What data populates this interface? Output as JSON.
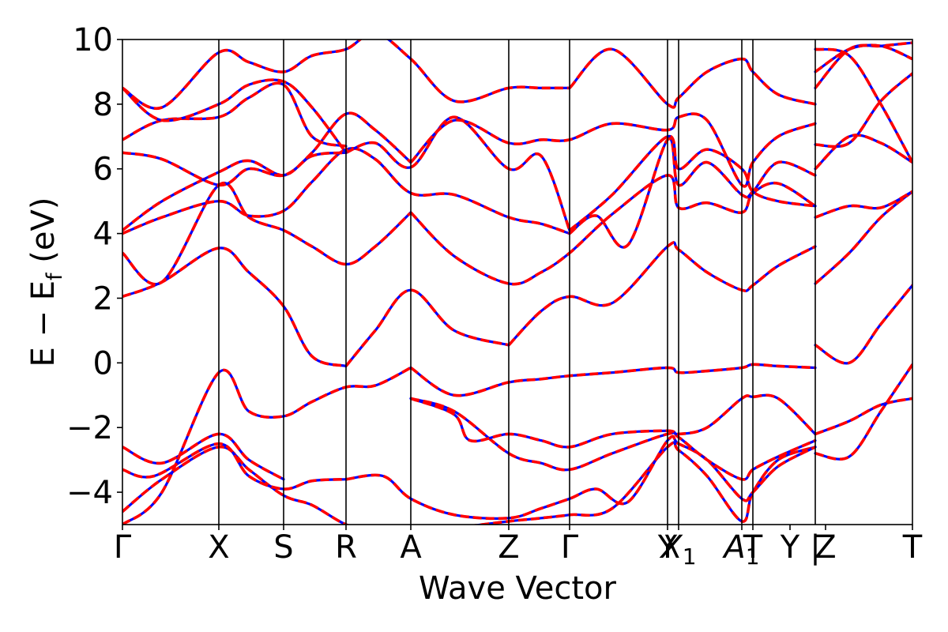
{
  "chart_data": {
    "type": "line",
    "title": "",
    "xlabel": "Wave Vector",
    "ylabel": "E − E",
    "ylabel_subscript": "f",
    "ylabel_unit": " (eV)",
    "ylim": [
      -5,
      10
    ],
    "yticks": [
      -4,
      -2,
      0,
      2,
      4,
      6,
      8,
      10
    ],
    "ytick_labels": [
      "−4",
      "−2",
      "0",
      "2",
      "4",
      "6",
      "8",
      "10"
    ],
    "xlim": [
      0,
      1
    ],
    "kpoints": [
      {
        "x": 0.0,
        "label": "Γ",
        "sub": ""
      },
      {
        "x": 0.122,
        "label": "X",
        "sub": ""
      },
      {
        "x": 0.204,
        "label": "S",
        "sub": ""
      },
      {
        "x": 0.283,
        "label": "R",
        "sub": ""
      },
      {
        "x": 0.365,
        "label": "A",
        "sub": ""
      },
      {
        "x": 0.489,
        "label": "Z",
        "sub": ""
      },
      {
        "x": 0.566,
        "label": "Γ",
        "sub": ""
      },
      {
        "x": 0.69,
        "label": "Y",
        "sub": ""
      },
      {
        "x": 0.704,
        "label": "X",
        "sub": "1"
      },
      {
        "x": 0.784,
        "label": "A",
        "sub": "1"
      },
      {
        "x": 0.798,
        "label": "T",
        "sub": ""
      },
      {
        "x": 0.845,
        "label": "Y",
        "sub": ""
      },
      {
        "x": 0.877,
        "label": "|",
        "sub": ""
      },
      {
        "x": 0.89,
        "label": "Z",
        "sub": ""
      },
      {
        "x": 1.0,
        "label": "T",
        "sub": ""
      }
    ],
    "vlines": [
      0.122,
      0.204,
      0.283,
      0.365,
      0.489,
      0.566,
      0.69,
      0.704,
      0.784,
      0.798,
      0.877
    ],
    "series": [
      {
        "style": "blue-solid-red-dashed",
        "bands": [
          {
            "x": [
              0,
              0.05,
              0.122,
              0.16,
              0.204,
              0.24,
              0.283,
              0.32,
              0.365,
              0.42,
              0.489,
              0.53,
              0.566,
              0.62,
              0.69,
              0.704,
              0.74,
              0.784,
              0.798,
              0.83,
              0.877
            ],
            "y": [
              -4.6,
              -3.6,
              -2.6,
              -3.3,
              -4.1,
              -4.4,
              -5.0,
              -5.2,
              -5.2,
              -5.1,
              -4.9,
              -4.8,
              -4.7,
              -4.5,
              -2.6,
              -2.7,
              -3.5,
              -4.9,
              -4.0,
              -3.0,
              -2.6
            ]
          },
          {
            "x": [
              0,
              0.04,
              0.122,
              0.16,
              0.204,
              0.24,
              0.283
            ],
            "y": [
              -3.3,
              -3.5,
              -2.5,
              -3.5,
              -3.9,
              -3.65,
              -3.6
            ]
          },
          {
            "x": [
              0,
              0.05,
              0.122,
              0.16,
              0.204
            ],
            "y": [
              -2.6,
              -3.1,
              -2.2,
              -3.0,
              -3.6
            ]
          },
          {
            "x": [
              0.283,
              0.33,
              0.365,
              0.42,
              0.489,
              0.53,
              0.566,
              0.6,
              0.64,
              0.69,
              0.704,
              0.74,
              0.784,
              0.798,
              0.83,
              0.877
            ],
            "y": [
              -3.6,
              -3.5,
              -4.2,
              -4.7,
              -4.8,
              -4.5,
              -4.2,
              -3.9,
              -4.3,
              -2.4,
              -2.5,
              -3.0,
              -4.2,
              -4.0,
              -3.2,
              -2.6
            ]
          },
          {
            "x": [
              0.365,
              0.42,
              0.489,
              0.53,
              0.566,
              0.62,
              0.69,
              0.704,
              0.74,
              0.784,
              0.798,
              0.83,
              0.877
            ],
            "y": [
              -1.1,
              -1.5,
              -2.8,
              -3.1,
              -3.3,
              -2.8,
              -2.2,
              -2.3,
              -3.0,
              -3.6,
              -3.3,
              -2.9,
              -2.4
            ]
          },
          {
            "x": [
              0.365,
              0.42,
              0.44,
              0.489,
              0.53,
              0.566,
              0.62,
              0.69,
              0.704,
              0.74,
              0.784,
              0.798,
              0.83,
              0.877
            ],
            "y": [
              -1.1,
              -1.6,
              -2.4,
              -2.2,
              -2.4,
              -2.6,
              -2.2,
              -2.1,
              -2.2,
              -2.0,
              -1.1,
              -1.05,
              -1.1,
              -2.2
            ]
          },
          {
            "x": [
              0,
              0.05,
              0.122,
              0.16,
              0.204,
              0.24,
              0.283,
              0.32,
              0.365
            ],
            "y": [
              -5.0,
              -4.0,
              -0.3,
              -1.5,
              -1.65,
              -1.2,
              -0.75,
              -0.7,
              -0.15
            ]
          },
          {
            "x": [
              0.365,
              0.42,
              0.489,
              0.53,
              0.566,
              0.62,
              0.69,
              0.704,
              0.74,
              0.784,
              0.798,
              0.83,
              0.877
            ],
            "y": [
              -0.15,
              -1.0,
              -0.6,
              -0.5,
              -0.4,
              -0.3,
              -0.15,
              -0.3,
              -0.25,
              -0.15,
              -0.05,
              -0.1,
              -0.15
            ]
          },
          {
            "x": [
              0.877,
              0.92,
              0.96,
              1.0
            ],
            "y": [
              -2.2,
              -1.8,
              -1.3,
              -1.1
            ]
          },
          {
            "x": [
              0.877,
              0.92,
              0.96,
              1.0
            ],
            "y": [
              -2.8,
              -2.9,
              -1.5,
              -0.05
            ]
          },
          {
            "x": [
              0.877,
              0.92,
              0.96,
              1.0
            ],
            "y": [
              0.55,
              0.0,
              1.2,
              2.4
            ]
          },
          {
            "x": [
              0,
              0.05,
              0.122,
              0.16,
              0.204,
              0.24,
              0.283
            ],
            "y": [
              2.05,
              2.5,
              3.55,
              2.8,
              1.75,
              0.2,
              -0.1
            ]
          },
          {
            "x": [
              0.283,
              0.32,
              0.365,
              0.42,
              0.489
            ],
            "y": [
              -0.1,
              1.0,
              2.25,
              1.0,
              0.55
            ]
          },
          {
            "x": [
              0.489,
              0.53,
              0.566,
              0.62,
              0.69,
              0.704,
              0.74,
              0.784,
              0.798,
              0.83,
              0.877
            ],
            "y": [
              0.55,
              1.6,
              2.05,
              1.85,
              3.6,
              3.5,
              2.8,
              2.25,
              2.4,
              3.0,
              3.6
            ]
          },
          {
            "x": [
              0,
              0.05,
              0.122,
              0.16,
              0.204,
              0.24,
              0.283,
              0.32,
              0.365
            ],
            "y": [
              3.4,
              2.5,
              5.5,
              4.5,
              4.1,
              3.6,
              3.05,
              3.6,
              4.65
            ]
          },
          {
            "x": [
              0.365,
              0.42,
              0.489,
              0.53,
              0.566,
              0.62,
              0.69,
              0.704,
              0.74,
              0.784,
              0.798,
              0.83,
              0.877
            ],
            "y": [
              4.65,
              3.3,
              2.45,
              2.8,
              3.4,
              4.6,
              5.8,
              4.8,
              4.95,
              4.65,
              5.25,
              5.55,
              4.85
            ]
          },
          {
            "x": [
              0.877,
              0.92,
              0.96,
              1.0
            ],
            "y": [
              2.45,
              3.4,
              4.5,
              5.3
            ]
          },
          {
            "x": [
              0,
              0.05,
              0.122,
              0.16,
              0.204,
              0.24,
              0.283,
              0.32,
              0.365,
              0.42,
              0.489,
              0.53,
              0.566
            ],
            "y": [
              4.0,
              4.5,
              5.0,
              4.55,
              4.7,
              5.6,
              6.6,
              6.3,
              5.25,
              5.2,
              4.5,
              4.3,
              4.0
            ]
          },
          {
            "x": [
              0.566,
              0.6,
              0.64,
              0.69,
              0.704,
              0.74,
              0.784,
              0.798,
              0.83,
              0.877
            ],
            "y": [
              4.0,
              4.55,
              3.65,
              6.9,
              5.5,
              6.2,
              5.2,
              5.3,
              6.2,
              5.8
            ]
          },
          {
            "x": [
              0,
              0.05,
              0.122,
              0.16,
              0.204,
              0.24,
              0.283
            ],
            "y": [
              4.1,
              5.0,
              5.9,
              6.25,
              5.8,
              6.4,
              6.5
            ]
          },
          {
            "x": [
              0.283,
              0.32,
              0.365,
              0.42,
              0.489,
              0.53,
              0.566
            ],
            "y": [
              6.5,
              6.8,
              6.05,
              7.6,
              6.0,
              6.4,
              4.1
            ]
          },
          {
            "x": [
              0.566,
              0.62,
              0.69,
              0.704,
              0.74,
              0.784,
              0.798,
              0.83,
              0.877
            ],
            "y": [
              4.1,
              5.2,
              7.0,
              6.0,
              6.6,
              6.0,
              5.3,
              5.0,
              4.85
            ]
          },
          {
            "x": [
              0,
              0.05,
              0.122,
              0.16,
              0.204,
              0.24,
              0.283,
              0.32,
              0.365
            ],
            "y": [
              6.5,
              6.3,
              5.5,
              6.0,
              5.8,
              6.5,
              7.7,
              7.2,
              6.2
            ]
          },
          {
            "x": [
              0.365,
              0.42,
              0.489,
              0.53,
              0.566,
              0.62,
              0.69,
              0.704,
              0.74,
              0.784,
              0.798,
              0.83,
              0.877
            ],
            "y": [
              6.2,
              7.5,
              6.8,
              6.9,
              6.9,
              7.4,
              7.2,
              7.6,
              7.5,
              5.5,
              6.2,
              7.0,
              7.4
            ]
          },
          {
            "x": [
              0.877,
              0.92,
              0.96,
              1.0
            ],
            "y": [
              4.5,
              4.85,
              4.8,
              5.3
            ]
          },
          {
            "x": [
              0.877,
              0.92,
              0.96,
              1.0
            ],
            "y": [
              6.0,
              7.0,
              6.8,
              6.2
            ]
          },
          {
            "x": [
              0,
              0.05,
              0.122,
              0.16,
              0.204,
              0.24,
              0.283
            ],
            "y": [
              6.9,
              7.5,
              7.6,
              8.2,
              8.6,
              7.0,
              6.7
            ]
          },
          {
            "x": [
              0,
              0.05,
              0.122,
              0.16,
              0.204,
              0.24,
              0.283
            ],
            "y": [
              8.5,
              7.5,
              8.0,
              8.6,
              8.7,
              7.9,
              6.5
            ]
          },
          {
            "x": [
              0,
              0.05,
              0.122,
              0.16,
              0.204,
              0.24,
              0.283,
              0.32,
              0.365,
              0.42,
              0.489,
              0.53,
              0.566
            ],
            "y": [
              8.5,
              7.9,
              9.6,
              9.3,
              9.0,
              9.5,
              9.7,
              10.2,
              9.4,
              8.1,
              8.5,
              8.5,
              8.5
            ]
          },
          {
            "x": [
              0.566,
              0.62,
              0.69,
              0.704,
              0.74,
              0.784,
              0.798,
              0.83,
              0.877
            ],
            "y": [
              8.5,
              9.7,
              8.0,
              8.2,
              9.0,
              9.4,
              9.0,
              8.3,
              8.0
            ]
          },
          {
            "x": [
              0.877,
              0.92,
              0.96,
              1.0
            ],
            "y": [
              6.75,
              6.8,
              8.1,
              8.95
            ]
          },
          {
            "x": [
              0.877,
              0.92,
              0.96,
              1.0
            ],
            "y": [
              8.5,
              9.7,
              9.8,
              9.9
            ]
          },
          {
            "x": [
              0.877,
              0.92,
              0.96,
              1.0
            ],
            "y": [
              9.0,
              9.7,
              9.8,
              9.4
            ]
          },
          {
            "x": [
              0.877,
              0.92,
              0.96,
              1.0
            ],
            "y": [
              9.7,
              9.5,
              8.0,
              6.2
            ]
          }
        ]
      }
    ]
  }
}
